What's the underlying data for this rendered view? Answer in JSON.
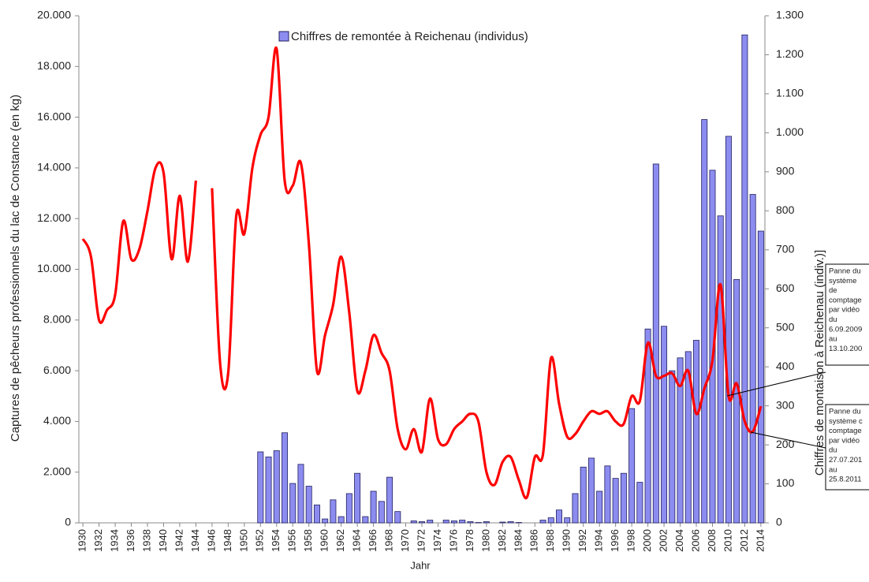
{
  "chart_data": {
    "type": "bar_line",
    "x": [
      1930,
      1931,
      1932,
      1933,
      1934,
      1935,
      1936,
      1937,
      1938,
      1939,
      1940,
      1941,
      1942,
      1943,
      1944,
      1945,
      1946,
      1947,
      1948,
      1949,
      1950,
      1951,
      1952,
      1953,
      1954,
      1955,
      1956,
      1957,
      1958,
      1959,
      1960,
      1961,
      1962,
      1963,
      1964,
      1965,
      1966,
      1967,
      1968,
      1969,
      1970,
      1971,
      1972,
      1973,
      1974,
      1975,
      1976,
      1977,
      1978,
      1979,
      1980,
      1981,
      1982,
      1983,
      1984,
      1985,
      1986,
      1987,
      1988,
      1989,
      1990,
      1991,
      1992,
      1993,
      1994,
      1995,
      1996,
      1997,
      1998,
      1999,
      2000,
      2001,
      2002,
      2003,
      2004,
      2005,
      2006,
      2007,
      2008,
      2009,
      2010,
      2011,
      2012,
      2013,
      2014
    ],
    "xlim": [
      1929.5,
      2014.5
    ],
    "xticks": [
      1930,
      1932,
      1934,
      1936,
      1938,
      1940,
      1942,
      1944,
      1946,
      1948,
      1950,
      1952,
      1954,
      1956,
      1958,
      1960,
      1962,
      1964,
      1966,
      1968,
      1970,
      1972,
      1974,
      1976,
      1978,
      1980,
      1982,
      1984,
      1986,
      1988,
      1990,
      1992,
      1994,
      1996,
      1998,
      2000,
      2002,
      2004,
      2006,
      2008,
      2010,
      2012,
      2014
    ],
    "xlabel": "Jahr",
    "ylabel": "Captures de pêcheurs professionnels du lac de Constance (en kg)",
    "y2label": "Chiffres de montaison à Reichenau (indiv.)]",
    "ylim": [
      0,
      20000
    ],
    "yticks": [
      0,
      {
        "value": 2000,
        "label": "2.000"
      },
      {
        "value": 4000,
        "label": "4.000"
      },
      {
        "value": 6000,
        "label": "6.000"
      },
      {
        "value": 8000,
        "label": "8.000"
      },
      {
        "value": 10000,
        "label": "10.000"
      },
      {
        "value": 12000,
        "label": "12.000"
      },
      {
        "value": 14000,
        "label": "14.000"
      },
      {
        "value": 16000,
        "label": "16.000"
      },
      {
        "value": 18000,
        "label": "18.000"
      },
      {
        "value": 20000,
        "label": "20.000"
      }
    ],
    "y2lim": [
      0,
      1300
    ],
    "y2ticks": [
      0,
      100,
      200,
      300,
      400,
      500,
      600,
      700,
      800,
      900,
      {
        "value": 1000,
        "label": "1.000"
      },
      {
        "value": 1100,
        "label": "1.100"
      },
      {
        "value": 1200,
        "label": "1.200"
      },
      {
        "value": 1300,
        "label": "1.300"
      }
    ],
    "series": [
      {
        "name": "Chiffres de remontée à Reichenau (individus)",
        "type": "bar",
        "axis": "y2",
        "color": "#8c8cf0",
        "values": [
          null,
          null,
          null,
          null,
          null,
          null,
          null,
          null,
          null,
          null,
          null,
          null,
          null,
          null,
          null,
          null,
          null,
          null,
          null,
          null,
          null,
          null,
          182,
          169,
          185,
          231,
          101,
          150,
          94,
          46,
          10,
          59,
          16,
          75,
          127,
          16,
          81,
          55,
          117,
          29,
          0,
          5,
          3,
          7,
          0,
          7,
          5,
          7,
          3,
          1,
          3,
          0,
          2,
          3,
          1,
          0,
          0,
          7,
          13,
          33,
          13,
          75,
          143,
          166,
          81,
          146,
          114,
          127,
          293,
          104,
          497,
          920,
          504,
          390,
          423,
          439,
          468,
          1034,
          904,
          787,
          991,
          624,
          1251,
          842,
          748
        ]
      },
      {
        "type": "line",
        "axis": "y",
        "color": "#ff0000",
        "values": [
          11200,
          10500,
          8000,
          8400,
          9000,
          11900,
          10400,
          10800,
          12300,
          14000,
          13800,
          10400,
          12900,
          10300,
          13500,
          null,
          13200,
          6300,
          5900,
          12100,
          11400,
          14000,
          15300,
          16000,
          18700,
          13500,
          13300,
          14200,
          11000,
          6000,
          7400,
          8600,
          10500,
          8300,
          5200,
          6000,
          7400,
          6700,
          6000,
          3700,
          2900,
          3700,
          2800,
          4900,
          3300,
          3100,
          3700,
          4000,
          4300,
          4000,
          2000,
          1500,
          2400,
          2600,
          1700,
          1000,
          2600,
          2700,
          6500,
          4700,
          3400,
          3500,
          4000,
          4400,
          4300,
          4400,
          4000,
          3900,
          5000,
          4800,
          7100,
          5800,
          5800,
          5900,
          5400,
          6000,
          4300,
          5300,
          6400,
          9400,
          5000,
          5500,
          4000,
          3600,
          4600
        ]
      }
    ],
    "legend": "top",
    "annotations": [
      {
        "lines": [
          "Panne du",
          "système",
          "de",
          "comptage",
          "par vidéo",
          "du",
          "6.09.2009",
          "au",
          "13.10.200"
        ]
      },
      {
        "lines": [
          "Panne du",
          "système c",
          "comptage",
          "par vidéo",
          "du",
          "27.07.201",
          "au",
          "25.8.2011"
        ]
      }
    ]
  }
}
